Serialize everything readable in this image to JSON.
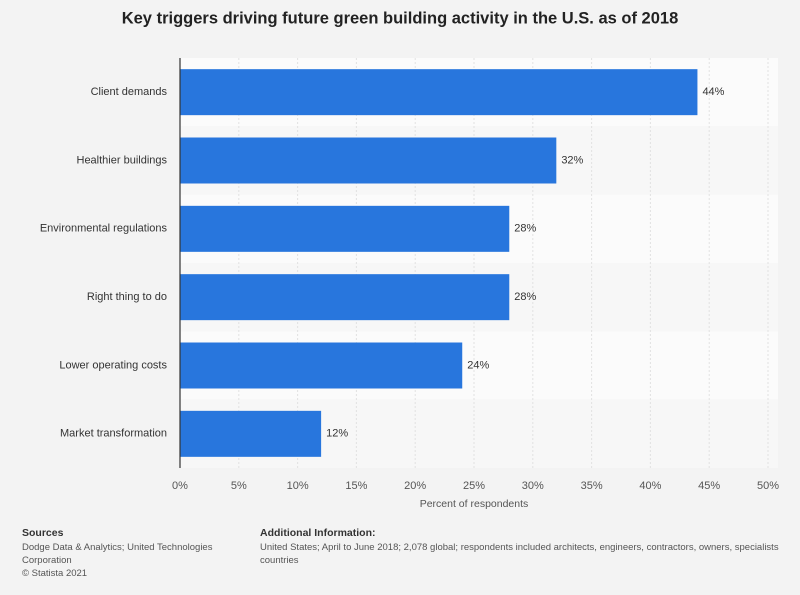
{
  "chart_data": {
    "type": "bar",
    "orientation": "horizontal",
    "title": "Key triggers driving future green building activity in the U.S. as of 2018",
    "x_label": "Percent of respondents",
    "categories": [
      "Client demands",
      "Healthier buildings",
      "Environmental regulations",
      "Right thing to do",
      "Lower operating costs",
      "Market transformation"
    ],
    "values": [
      44,
      32,
      28,
      28,
      24,
      12
    ],
    "value_labels": [
      "44%",
      "32%",
      "28%",
      "28%",
      "24%",
      "12%"
    ],
    "color": "#2876dd",
    "xlim": [
      0,
      50
    ],
    "xticks": [
      {
        "value": 0,
        "label": "0%"
      },
      {
        "value": 5,
        "label": "5%"
      },
      {
        "value": 10,
        "label": "10%"
      },
      {
        "value": 15,
        "label": "15%"
      },
      {
        "value": 20,
        "label": "20%"
      },
      {
        "value": 25,
        "label": "25%"
      },
      {
        "value": 30,
        "label": "30%"
      },
      {
        "value": 35,
        "label": "35%"
      },
      {
        "value": 40,
        "label": "40%"
      },
      {
        "value": 45,
        "label": "45%"
      },
      {
        "value": 50,
        "label": "50%"
      }
    ],
    "grid": true
  },
  "footer": {
    "sources_title": "Sources",
    "sources": "Dodge Data & Analytics; United Technologies Corporation",
    "copyright": "© Statista 2021",
    "info_title": "Additional Information:",
    "info_lines": [
      "United States; April to June 2018; 2,078 global; respondents included architects, engineers, contractors, owners, specialists",
      "countries"
    ]
  }
}
